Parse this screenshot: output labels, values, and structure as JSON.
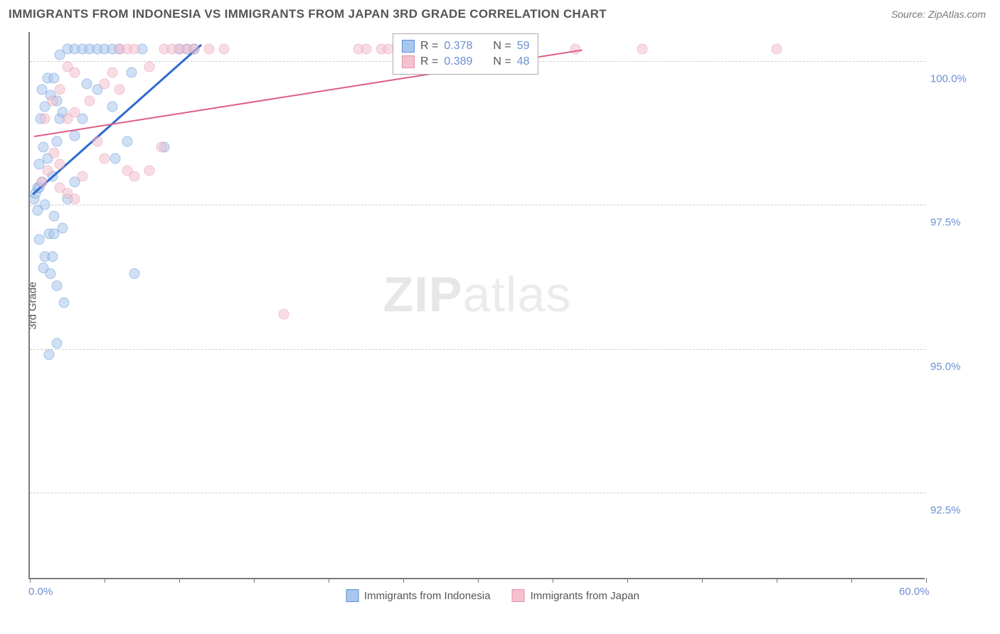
{
  "header": {
    "title": "IMMIGRANTS FROM INDONESIA VS IMMIGRANTS FROM JAPAN 3RD GRADE CORRELATION CHART",
    "source": "Source: ZipAtlas.com"
  },
  "chart": {
    "type": "scatter",
    "ylabel": "3rd Grade",
    "watermark_a": "ZIP",
    "watermark_b": "atlas",
    "background_color": "#ffffff",
    "grid_color": "#cccccc",
    "axis_color": "#7a7a7a",
    "xlim": [
      0,
      60
    ],
    "ylim": [
      91,
      100.5
    ],
    "xticks": [
      0,
      5,
      10,
      15,
      20,
      25,
      30,
      35,
      40,
      45,
      50,
      55,
      60
    ],
    "xticklabels": {
      "0": "0.0%",
      "60": "60.0%"
    },
    "yticks": [
      92.5,
      95.0,
      97.5,
      100.0
    ],
    "yticklabels": [
      "92.5%",
      "95.0%",
      "97.5%",
      "100.0%"
    ],
    "series": [
      {
        "name": "Immigrants from Indonesia",
        "fill": "#a9c7ee",
        "stroke": "#5b8fd6",
        "line_color": "#2e6bd0",
        "r": "0.378",
        "n": "59",
        "trend": {
          "x1": 0.2,
          "y1": 97.7,
          "x2": 11.5,
          "y2": 100.3
        },
        "points": [
          [
            0.3,
            97.6
          ],
          [
            0.4,
            97.7
          ],
          [
            0.5,
            97.8
          ],
          [
            0.6,
            97.8
          ],
          [
            0.8,
            97.9
          ],
          [
            1.0,
            97.5
          ],
          [
            0.5,
            97.4
          ],
          [
            0.6,
            98.2
          ],
          [
            0.9,
            98.5
          ],
          [
            1.2,
            98.3
          ],
          [
            1.5,
            98.0
          ],
          [
            1.8,
            98.6
          ],
          [
            0.7,
            99.0
          ],
          [
            1.0,
            99.2
          ],
          [
            1.4,
            99.4
          ],
          [
            1.8,
            99.3
          ],
          [
            2.0,
            99.0
          ],
          [
            2.2,
            99.1
          ],
          [
            0.8,
            99.5
          ],
          [
            1.2,
            99.7
          ],
          [
            1.6,
            99.7
          ],
          [
            2.0,
            100.1
          ],
          [
            2.5,
            100.2
          ],
          [
            3.0,
            100.2
          ],
          [
            3.5,
            100.2
          ],
          [
            4.0,
            100.2
          ],
          [
            4.5,
            100.2
          ],
          [
            5.0,
            100.2
          ],
          [
            5.5,
            100.2
          ],
          [
            6.0,
            100.2
          ],
          [
            7.5,
            100.2
          ],
          [
            10.0,
            100.2
          ],
          [
            10.5,
            100.2
          ],
          [
            11.0,
            100.2
          ],
          [
            3.8,
            99.6
          ],
          [
            4.5,
            99.5
          ],
          [
            5.5,
            99.2
          ],
          [
            6.5,
            98.6
          ],
          [
            5.7,
            98.3
          ],
          [
            3.0,
            98.7
          ],
          [
            3.5,
            99.0
          ],
          [
            9.0,
            98.5
          ],
          [
            6.8,
            99.8
          ],
          [
            1.3,
            97.0
          ],
          [
            1.6,
            97.0
          ],
          [
            2.2,
            97.1
          ],
          [
            0.6,
            96.9
          ],
          [
            1.0,
            96.6
          ],
          [
            1.5,
            96.6
          ],
          [
            0.9,
            96.4
          ],
          [
            1.4,
            96.3
          ],
          [
            1.8,
            96.1
          ],
          [
            7.0,
            96.3
          ],
          [
            2.3,
            95.8
          ],
          [
            1.8,
            95.1
          ],
          [
            1.3,
            94.9
          ],
          [
            1.6,
            97.3
          ],
          [
            2.5,
            97.6
          ],
          [
            3.0,
            97.9
          ]
        ]
      },
      {
        "name": "Immigrants from Japan",
        "fill": "#f4c1cf",
        "stroke": "#e891aa",
        "line_color": "#de5f86",
        "r": "0.389",
        "n": "48",
        "trend": {
          "x1": 0.3,
          "y1": 98.7,
          "x2": 37.0,
          "y2": 100.2
        },
        "points": [
          [
            0.8,
            97.9
          ],
          [
            1.2,
            98.1
          ],
          [
            1.6,
            98.4
          ],
          [
            2.0,
            98.2
          ],
          [
            2.0,
            97.8
          ],
          [
            2.5,
            97.7
          ],
          [
            3.0,
            97.6
          ],
          [
            2.5,
            99.0
          ],
          [
            3.0,
            99.1
          ],
          [
            4.0,
            99.3
          ],
          [
            1.0,
            99.0
          ],
          [
            1.5,
            99.3
          ],
          [
            2.0,
            99.5
          ],
          [
            2.5,
            99.9
          ],
          [
            3.0,
            99.8
          ],
          [
            5.0,
            99.6
          ],
          [
            5.5,
            99.8
          ],
          [
            6.0,
            99.5
          ],
          [
            6.0,
            100.2
          ],
          [
            6.5,
            100.2
          ],
          [
            7.0,
            100.2
          ],
          [
            8.0,
            99.9
          ],
          [
            9.0,
            100.2
          ],
          [
            9.5,
            100.2
          ],
          [
            10.0,
            100.2
          ],
          [
            10.5,
            100.2
          ],
          [
            11.0,
            100.2
          ],
          [
            12.0,
            100.2
          ],
          [
            13.0,
            100.2
          ],
          [
            22.0,
            100.2
          ],
          [
            22.5,
            100.2
          ],
          [
            23.5,
            100.2
          ],
          [
            24.0,
            100.2
          ],
          [
            25.0,
            100.2
          ],
          [
            26.5,
            100.2
          ],
          [
            28.0,
            100.2
          ],
          [
            29.0,
            100.2
          ],
          [
            36.5,
            100.2
          ],
          [
            41.0,
            100.2
          ],
          [
            50.0,
            100.2
          ],
          [
            6.5,
            98.1
          ],
          [
            7.0,
            98.0
          ],
          [
            8.0,
            98.1
          ],
          [
            8.8,
            98.5
          ],
          [
            4.5,
            98.6
          ],
          [
            3.5,
            98.0
          ],
          [
            5.0,
            98.3
          ],
          [
            17.0,
            95.6
          ]
        ]
      }
    ],
    "legend_box": {
      "r_label": "R =",
      "n_label": "N ="
    },
    "bottom_legend_labels": [
      "Immigrants from Indonesia",
      "Immigrants from Japan"
    ]
  }
}
